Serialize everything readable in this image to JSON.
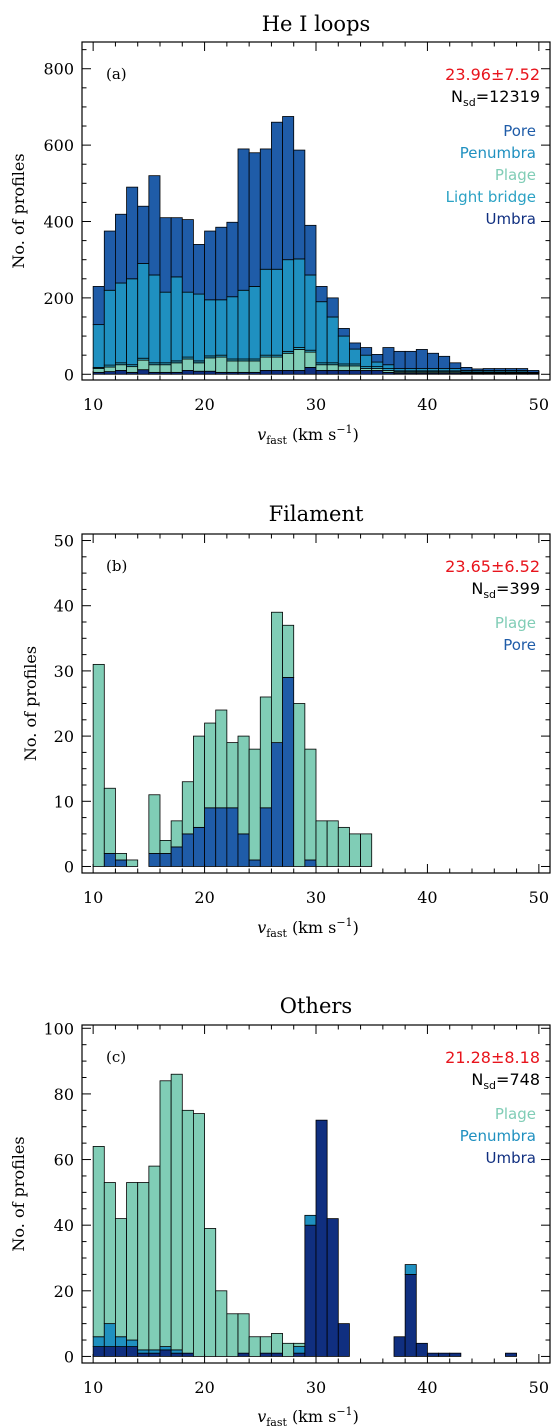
{
  "colors": {
    "Umbra": "#102f80",
    "Light bridge": "#2ba2c4",
    "Plage": "#80cdb6",
    "Penumbra": "#1f90c0",
    "Pore": "#1f5ca8",
    "stat_red": "#e8141c",
    "axis": "#000000"
  },
  "chart_data": [
    {
      "type": "bar",
      "stacked": true,
      "title": "He I loops",
      "panel_label": "(a)",
      "xlabel_sym": "v",
      "xlabel_sub": "fast",
      "xlabel_unit": "(km s",
      "xlabel_sup": "−1",
      "xlabel_close": ")",
      "ylabel": "No. of profiles",
      "xlim": [
        9,
        51
      ],
      "ylim": [
        -15,
        870
      ],
      "xticks": [
        10,
        20,
        30,
        40,
        50
      ],
      "yticks": [
        0,
        200,
        400,
        600,
        800
      ],
      "stat_mean": "23.96±7.52",
      "stat_n_prefix": "N",
      "stat_n_sub": "sd",
      "stat_n_value": "=12319",
      "legend": [
        "Pore",
        "Penumbra",
        "Plage",
        "Light bridge",
        "Umbra"
      ],
      "legend_colors": [
        "Pore",
        "Penumbra",
        "Plage",
        "Light bridge",
        "Umbra"
      ],
      "bin_start": 10,
      "bin_width": 1,
      "series": [
        {
          "name": "Umbra",
          "values": [
            5,
            7,
            10,
            5,
            12,
            5,
            5,
            5,
            10,
            8,
            8,
            5,
            5,
            5,
            5,
            10,
            10,
            10,
            10,
            18,
            10,
            10,
            10,
            10,
            10,
            10,
            5,
            3,
            3,
            3,
            3,
            3,
            3,
            2,
            2,
            2,
            2,
            2,
            2,
            1
          ]
        },
        {
          "name": "Plage",
          "values": [
            10,
            12,
            15,
            15,
            25,
            20,
            20,
            25,
            30,
            22,
            35,
            40,
            30,
            30,
            30,
            35,
            35,
            45,
            55,
            40,
            15,
            15,
            12,
            12,
            5,
            5,
            5,
            3,
            3,
            3,
            3,
            3,
            3,
            2,
            2,
            2,
            2,
            2,
            2,
            1
          ]
        },
        {
          "name": "Light bridge",
          "values": [
            3,
            5,
            5,
            5,
            5,
            5,
            5,
            5,
            5,
            5,
            5,
            5,
            5,
            5,
            5,
            5,
            5,
            5,
            5,
            5,
            5,
            5,
            5,
            5,
            5,
            5,
            5,
            3,
            3,
            3,
            3,
            3,
            3,
            2,
            2,
            2,
            2,
            2,
            2,
            1
          ]
        },
        {
          "name": "Penumbra",
          "values": [
            112,
            196,
            209,
            225,
            248,
            230,
            185,
            220,
            170,
            175,
            147,
            145,
            163,
            180,
            190,
            225,
            225,
            240,
            232,
            197,
            160,
            120,
            73,
            39,
            30,
            12,
            10,
            6,
            6,
            6,
            6,
            6,
            6,
            4,
            4,
            4,
            4,
            4,
            4,
            2
          ]
        },
        {
          "name": "Pore",
          "values": [
            100,
            155,
            180,
            240,
            150,
            260,
            195,
            155,
            190,
            130,
            180,
            190,
            195,
            370,
            350,
            315,
            385,
            375,
            285,
            130,
            40,
            50,
            20,
            16,
            20,
            20,
            45,
            45,
            45,
            50,
            40,
            32,
            15,
            8,
            4,
            5,
            5,
            5,
            5,
            5
          ]
        }
      ]
    },
    {
      "type": "bar",
      "stacked": true,
      "title": "Filament",
      "panel_label": "(b)",
      "xlabel_sym": "v",
      "xlabel_sub": "fast",
      "xlabel_unit": "(km s",
      "xlabel_sup": "−1",
      "xlabel_close": ")",
      "ylabel": "No. of profiles",
      "xlim": [
        9,
        51
      ],
      "ylim": [
        -1,
        51
      ],
      "xticks": [
        10,
        20,
        30,
        40,
        50
      ],
      "yticks": [
        0,
        10,
        20,
        30,
        40,
        50
      ],
      "stat_mean": "23.65±6.52",
      "stat_n_prefix": "N",
      "stat_n_sub": "sd",
      "stat_n_value": "=399",
      "legend": [
        "Plage",
        "Pore"
      ],
      "legend_colors": [
        "Plage",
        "Pore"
      ],
      "bin_start": 10,
      "bin_width": 1,
      "series": [
        {
          "name": "Pore",
          "values": [
            0,
            2,
            1,
            0,
            0,
            2,
            2,
            3,
            5,
            6,
            9,
            9,
            9,
            5,
            1,
            9,
            19,
            29,
            0,
            1,
            0,
            0,
            0,
            0,
            0,
            0,
            0,
            0,
            0,
            0,
            0,
            0,
            0,
            0,
            0,
            0,
            0,
            0,
            0,
            0
          ]
        },
        {
          "name": "Plage",
          "values": [
            31,
            10,
            1,
            1,
            0,
            9,
            2,
            4,
            8,
            14,
            13,
            15,
            10,
            15,
            17,
            17,
            20,
            8,
            25,
            17,
            7,
            7,
            6,
            5,
            5,
            0,
            0,
            0,
            0,
            0,
            0,
            0,
            0,
            0,
            0,
            0,
            0,
            0,
            0,
            0
          ]
        }
      ]
    },
    {
      "type": "bar",
      "stacked": true,
      "title": "Others",
      "panel_label": "(c)",
      "xlabel_sym": "v",
      "xlabel_sub": "fast",
      "xlabel_unit": "(km s",
      "xlabel_sup": "−1",
      "xlabel_close": ")",
      "ylabel": "No. of profiles",
      "xlim": [
        9,
        51
      ],
      "ylim": [
        -2,
        101
      ],
      "xticks": [
        10,
        20,
        30,
        40,
        50
      ],
      "yticks": [
        0,
        20,
        40,
        60,
        80,
        100
      ],
      "stat_mean": "21.28±8.18",
      "stat_n_prefix": "N",
      "stat_n_sub": "sd",
      "stat_n_value": "=748",
      "legend": [
        "Plage",
        "Penumbra",
        "Umbra"
      ],
      "legend_colors": [
        "Plage",
        "Penumbra",
        "Umbra"
      ],
      "bin_start": 10,
      "bin_width": 1,
      "series": [
        {
          "name": "Umbra",
          "values": [
            3,
            3,
            3,
            3,
            1,
            1,
            2,
            1,
            1,
            0,
            0,
            0,
            0,
            1,
            0,
            1,
            1,
            0,
            1,
            40,
            72,
            42,
            10,
            0,
            0,
            0,
            0,
            6,
            25,
            4,
            1,
            1,
            1,
            0,
            0,
            0,
            0,
            1,
            0,
            0
          ]
        },
        {
          "name": "Penumbra",
          "values": [
            3,
            7,
            3,
            2,
            1,
            1,
            1,
            1,
            0,
            0,
            0,
            0,
            0,
            0,
            0,
            0,
            0,
            0,
            2,
            3,
            0,
            0,
            0,
            0,
            0,
            0,
            0,
            0,
            3,
            0,
            0,
            0,
            0,
            0,
            0,
            0,
            0,
            0,
            0,
            0
          ]
        },
        {
          "name": "Plage",
          "values": [
            58,
            43,
            36,
            48,
            51,
            56,
            81,
            84,
            74,
            74,
            39,
            20,
            13,
            12,
            6,
            5,
            6,
            4,
            1,
            0,
            0,
            0,
            0,
            0,
            0,
            0,
            0,
            0,
            0,
            0,
            0,
            0,
            0,
            0,
            0,
            0,
            0,
            0,
            0,
            0
          ]
        }
      ]
    }
  ]
}
